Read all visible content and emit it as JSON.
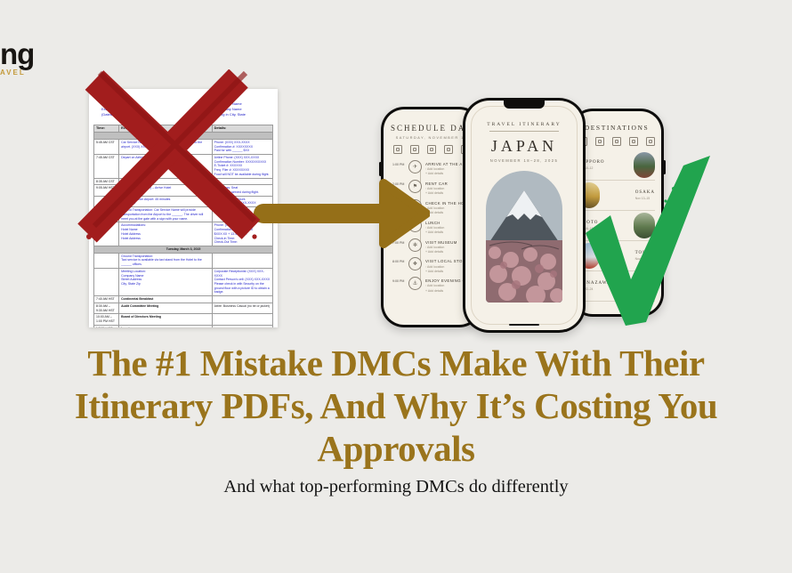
{
  "logo": {
    "name_fragment": "ng",
    "tagline_fragment": "AVEL",
    "tagline_color": "#C49A3A"
  },
  "colors": {
    "background": "#ECEBE8",
    "gold": "#956F18",
    "headline_gold": "#9A741C",
    "x_red": "#A21D1D",
    "check_green": "#21A44E"
  },
  "document": {
    "header_left_lines": [
      "Travel Itinerary for:",
      "Executive Name",
      "(Dates of trip)"
    ],
    "header_right_lines": [
      "Executive Name",
      "Company Name",
      "Meeting in City, State"
    ],
    "table": {
      "columns": [
        "Time:",
        "Event:",
        "Details:"
      ],
      "day1_band": "Monday, March 2, 2015",
      "day1_rows": [
        {
          "time": "5:45 AM CST",
          "event": "Car Service Name will pick you up and transport you to the airport. (XXX) XXX-XXXX – Trisha",
          "details": "Phone: (XXX) XXX-XXXX\nConfirmation #: XXXXXXXX\nPaid for with ______ $XX"
        },
        {
          "time": "7:45 AM CST",
          "event": "Depart on Airline Name Flight XXXX",
          "details": "Airline Phone: (XXX) XXX-XXXX\nConfirmation Number: XXXXXXXXXX\nE-Ticket #: XXXXXX\nFreq. Flier #: XXXXXXXX\nFood will NOT be available during flight."
        },
        {
          "time": "8:35 AM CST",
          "event": "Arrive in City, State",
          "details": ""
        },
        {
          "time": "9:05 AM HST",
          "event": "Arrive in City (O'Hare) – Arrive Hotel",
          "details": "Aisle/Class: Seat\nFood will be served during flight."
        },
        {
          "time": "",
          "event": "Travel time from Airport: 45 minutes\nCity Name",
          "details": "Time Change: X hours\nFront Desk: (XXX) XXX-XXXX"
        },
        {
          "time": "",
          "event": "Ground Transportation: Car Service Name will provide transportation from the Airport to the ______. The driver will meet you at the gate with a sign with your name.",
          "details": "Phone: (XXX) XXX-XXXX"
        },
        {
          "time": "",
          "event": "Accommodations:\nHotel Name\nHotel Address\nHotel Address",
          "details": "Phone: (XXX) XXX-XXXX\nConfirmation #: XXXXXXXX\n$XXX.XX + 13.41% Tax\nCheck-in Time:\nCheck-Out Time:"
        }
      ],
      "day2_band": "Tuesday, March 3, 2015",
      "day2_rows": [
        {
          "time": "",
          "event": "Ground Transportation:\nTaxi service is available via taxi stand from the Hotel to the ______ offices.",
          "details": ""
        },
        {
          "time": "",
          "event": "Meeting Location:\nCompany Name\nStreet Address\nCity, State Zip",
          "details": "Corporate Receptionist: (XXX) XXX-XXXX\nContact Person's cell: (XXX) XXX-XXXX\nPlease check in with Security on the ground floor with a picture ID to obtain a badge."
        },
        {
          "time": "7:40 AM HST",
          "event": "Continental Breakfast",
          "details": "",
          "dark": true
        },
        {
          "time": "8:30 AM – 9:30 AM HST",
          "event": "Audit Committee Meeting",
          "details": "Attire: Business Casual (no tie or jacket)",
          "dark": true
        },
        {
          "time": "10:00 AM – 1:00 PM HST",
          "event": "Board of Directors Meeting",
          "details": "",
          "dark": true
        },
        {
          "time": "NOON HST",
          "event": "Lunch",
          "details": "",
          "dark": true
        },
        {
          "time": "2:40 PM HST",
          "event": "Ground Transportation: Car service by ______ from ______ to the airport.",
          "details": "Cost will be charged directly to ______ account.",
          "dark": true
        }
      ]
    }
  },
  "phones": {
    "schedule": {
      "title": "SCHEDULE  DAY",
      "subtitle": "SATURDAY, NOVEMBER 18",
      "toolbar_icons": [
        "notes-icon",
        "search-icon",
        "share-icon",
        "photo-icon",
        "print-icon"
      ],
      "add_location": "Add location",
      "add_details": "Add details",
      "items": [
        {
          "time": "1:00 PM",
          "label": "ARRIVE AT THE AIRPORT",
          "glyph": "✈",
          "icon": "airplane-icon"
        },
        {
          "time": "2:00 PM",
          "label": "RENT CAR",
          "glyph": "⚑",
          "icon": "car-icon"
        },
        {
          "time": "3:00 PM",
          "label": "CHECK IN THE HOTEL",
          "glyph": "⌂",
          "icon": "hotel-icon"
        },
        {
          "time": "5:00 PM",
          "label": "LUNCH",
          "glyph": "✦",
          "icon": "meal-icon"
        },
        {
          "time": "7:00 PM",
          "label": "VISIT MUSEUM",
          "glyph": "✻",
          "icon": "museum-icon"
        },
        {
          "time": "8:00 PM",
          "label": "VISIT LOCAL STORE",
          "glyph": "❖",
          "icon": "store-icon"
        },
        {
          "time": "9:00 PM",
          "label": "ENJOY EVENING CRUISE",
          "glyph": "⚓",
          "icon": "cruise-icon"
        }
      ]
    },
    "japan": {
      "eyebrow": "TRAVEL ITINERARY",
      "title": "JAPAN",
      "dates": "NOVEMBER 18–28, 2025"
    },
    "destinations": {
      "title": "DESTINATIONS",
      "toolbar_icons": [
        "search-icon",
        "share-icon",
        "photo-icon",
        "print-icon",
        "edit-icon"
      ],
      "items": [
        {
          "name": "SAPPORO",
          "dates": "Nov 10–12",
          "photo_colors": [
            "#8a97a6",
            "#49663f",
            "#7e4638"
          ]
        },
        {
          "name": "OSAKA",
          "dates": "Nov 13–15",
          "photo_colors": [
            "#e3cf92",
            "#c29b3e",
            "#6a5526"
          ]
        },
        {
          "name": "KYOTO",
          "dates": "Nov 16–18",
          "photo_colors": [
            "#a9b59a",
            "#5f7a4e",
            "#3c4f33"
          ]
        },
        {
          "name": "TOKYO",
          "dates": "Nov 19–21",
          "photo_colors": [
            "#9fc0d8",
            "#d8dde2",
            "#b3402f"
          ]
        },
        {
          "name": "KANAZAWA",
          "dates": "Nov 22–24",
          "photo_colors": [
            "#cfd3d6",
            "#8e9297",
            "#6d4a41"
          ]
        }
      ]
    }
  },
  "headline": {
    "lines": [
      "The #1 Mistake DMCs Make With Their",
      "Itinerary PDFs, And Why It’s Costing You",
      "Approvals"
    ]
  },
  "subheadline": {
    "text": "And what top-performing DMCs do differently"
  }
}
